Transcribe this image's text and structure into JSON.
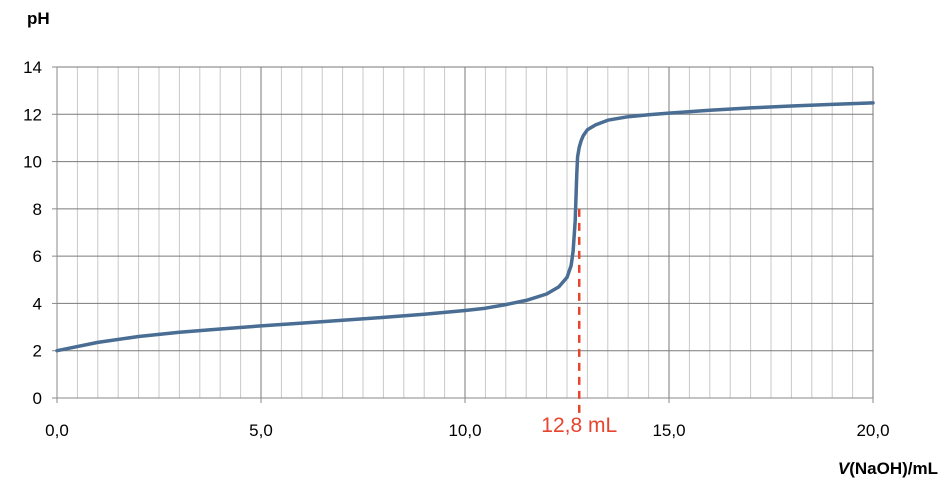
{
  "chart_data": {
    "type": "line",
    "ylabel": "pH",
    "xlabel_italic": "V",
    "xlabel_rest": "(NaOH)/mL",
    "xlim": [
      0,
      20
    ],
    "ylim": [
      0,
      14
    ],
    "x_ticks": [
      "0,0",
      "5,0",
      "10,0",
      "15,0",
      "20,0"
    ],
    "x_tick_values": [
      0,
      5,
      10,
      15,
      20
    ],
    "y_ticks": [
      "0",
      "2",
      "4",
      "6",
      "8",
      "10",
      "12",
      "14"
    ],
    "y_tick_values": [
      0,
      2,
      4,
      6,
      8,
      10,
      12,
      14
    ],
    "grid": true,
    "minor_x_step": 0.5,
    "series": [
      {
        "color": "#4a6d93",
        "x": [
          0,
          1,
          2,
          3,
          4,
          5,
          6,
          7,
          8,
          9,
          10,
          10.5,
          11,
          11.5,
          12,
          12.3,
          12.5,
          12.6,
          12.65,
          12.7,
          12.72,
          12.74,
          12.76,
          12.8,
          12.85,
          12.9,
          13,
          13.2,
          13.5,
          14,
          14.5,
          15,
          16,
          17,
          18,
          19,
          20
        ],
        "y": [
          2.0,
          2.35,
          2.6,
          2.78,
          2.92,
          3.05,
          3.17,
          3.29,
          3.41,
          3.54,
          3.7,
          3.8,
          3.95,
          4.13,
          4.4,
          4.7,
          5.1,
          5.6,
          6.2,
          7.5,
          8.5,
          9.5,
          10.2,
          10.6,
          10.9,
          11.1,
          11.35,
          11.55,
          11.75,
          11.9,
          11.98,
          12.05,
          12.17,
          12.27,
          12.35,
          12.42,
          12.48
        ]
      }
    ],
    "annotation": {
      "label": "12,8 mL",
      "x": 12.8,
      "y_top": 8,
      "color": "#e8442e"
    }
  },
  "colors": {
    "line": "#4a6d93",
    "annotation": "#e8442e",
    "grid": "#c9c9c9",
    "major_grid": "#7a7a7a",
    "axis": "#8a8a8a"
  }
}
